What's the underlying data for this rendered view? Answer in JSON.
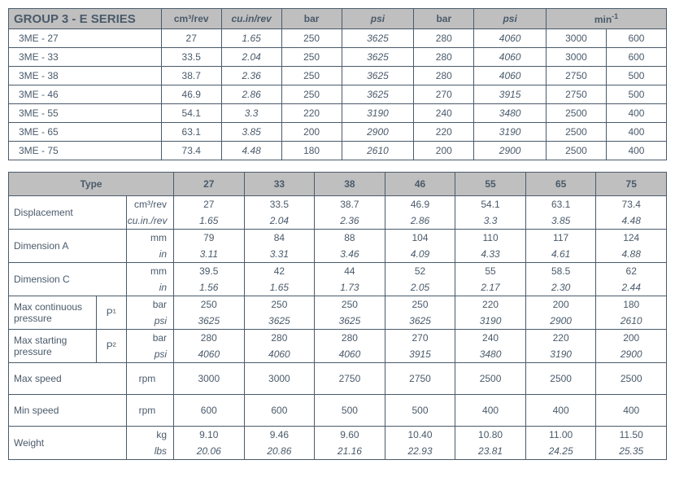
{
  "table1": {
    "title": "GROUP 3 - E SERIES",
    "headers": [
      "cm³/rev",
      "cu.in/rev",
      "bar",
      "psi",
      "bar",
      "psi",
      "min"
    ],
    "header_sup": "-1",
    "header_italic": [
      false,
      true,
      false,
      true,
      false,
      true,
      false
    ],
    "col_widths_pct": [
      22,
      8.67,
      8.67,
      8.67,
      10.4,
      8.67,
      10.4,
      8.67,
      8.67
    ],
    "rows": [
      {
        "name": "3ME - 27",
        "cm3": "27",
        "cuin": "1.65",
        "bar1": "250",
        "psi1": "3625",
        "bar2": "280",
        "psi2": "4060",
        "max": "3000",
        "min": "600"
      },
      {
        "name": "3ME - 33",
        "cm3": "33.5",
        "cuin": "2.04",
        "bar1": "250",
        "psi1": "3625",
        "bar2": "280",
        "psi2": "4060",
        "max": "3000",
        "min": "600"
      },
      {
        "name": "3ME - 38",
        "cm3": "38.7",
        "cuin": "2.36",
        "bar1": "250",
        "psi1": "3625",
        "bar2": "280",
        "psi2": "4060",
        "max": "2750",
        "min": "500"
      },
      {
        "name": "3ME - 46",
        "cm3": "46.9",
        "cuin": "2.86",
        "bar1": "250",
        "psi1": "3625",
        "bar2": "270",
        "psi2": "3915",
        "max": "2750",
        "min": "500"
      },
      {
        "name": "3ME - 55",
        "cm3": "54.1",
        "cuin": "3.3",
        "bar1": "220",
        "psi1": "3190",
        "bar2": "240",
        "psi2": "3480",
        "max": "2500",
        "min": "400"
      },
      {
        "name": "3ME - 65",
        "cm3": "63.1",
        "cuin": "3.85",
        "bar1": "200",
        "psi1": "2900",
        "bar2": "220",
        "psi2": "3190",
        "max": "2500",
        "min": "400"
      },
      {
        "name": "3ME - 75",
        "cm3": "73.4",
        "cuin": "4.48",
        "bar1": "180",
        "psi1": "2610",
        "bar2": "200",
        "psi2": "2900",
        "max": "2500",
        "min": "400"
      }
    ]
  },
  "table2": {
    "type_label": "Type",
    "sizes": [
      "27",
      "33",
      "38",
      "46",
      "55",
      "65",
      "75"
    ],
    "col_widths_pct": [
      13.3,
      4.6,
      7.2,
      10.7,
      10.7,
      10.7,
      10.7,
      10.7,
      10.7,
      10.7
    ],
    "rows": [
      {
        "label": "Displacement",
        "p": "",
        "u1": "cm³/rev",
        "u2": "cu.in./rev",
        "v1": [
          "27",
          "33.5",
          "38.7",
          "46.9",
          "54.1",
          "63.1",
          "73.4"
        ],
        "v2": [
          "1.65",
          "2.04",
          "2.36",
          "2.86",
          "3.3",
          "3.85",
          "4.48"
        ]
      },
      {
        "label": "Dimension A",
        "p": "",
        "u1": "mm",
        "u2": "in",
        "v1": [
          "79",
          "84",
          "88",
          "104",
          "110",
          "117",
          "124"
        ],
        "v2": [
          "3.11",
          "3.31",
          "3.46",
          "4.09",
          "4.33",
          "4.61",
          "4.88"
        ]
      },
      {
        "label": "Dimension C",
        "p": "",
        "u1": "mm",
        "u2": "in",
        "v1": [
          "39.5",
          "42",
          "44",
          "52",
          "55",
          "58.5",
          "62"
        ],
        "v2": [
          "1.56",
          "1.65",
          "1.73",
          "2.05",
          "2.17",
          "2.30",
          "2.44"
        ]
      },
      {
        "label": "Max continuous pressure",
        "p": "P¹",
        "u1": "bar",
        "u2": "psi",
        "v1": [
          "250",
          "250",
          "250",
          "250",
          "220",
          "200",
          "180"
        ],
        "v2": [
          "3625",
          "3625",
          "3625",
          "3625",
          "3190",
          "2900",
          "2610"
        ]
      },
      {
        "label": "Max starting pressure",
        "p": "P²",
        "u1": "bar",
        "u2": "psi",
        "v1": [
          "280",
          "280",
          "280",
          "270",
          "240",
          "220",
          "200"
        ],
        "v2": [
          "4060",
          "4060",
          "4060",
          "3915",
          "3480",
          "3190",
          "2900"
        ]
      },
      {
        "label": "Max speed",
        "p": "",
        "u1": "rpm",
        "u2": "",
        "v1": [
          "3000",
          "3000",
          "2750",
          "2750",
          "2500",
          "2500",
          "2500"
        ],
        "v2": null
      },
      {
        "label": "Min speed",
        "p": "",
        "u1": "rpm",
        "u2": "",
        "v1": [
          "600",
          "600",
          "500",
          "500",
          "400",
          "400",
          "400"
        ],
        "v2": null
      },
      {
        "label": "Weight",
        "p": "",
        "u1": "kg",
        "u2": "lbs",
        "v1": [
          "9.10",
          "9.46",
          "9.60",
          "10.40",
          "10.80",
          "11.00",
          "11.50"
        ],
        "v2": [
          "20.06",
          "20.86",
          "21.16",
          "22.93",
          "23.81",
          "24.25",
          "25.35"
        ]
      }
    ]
  }
}
